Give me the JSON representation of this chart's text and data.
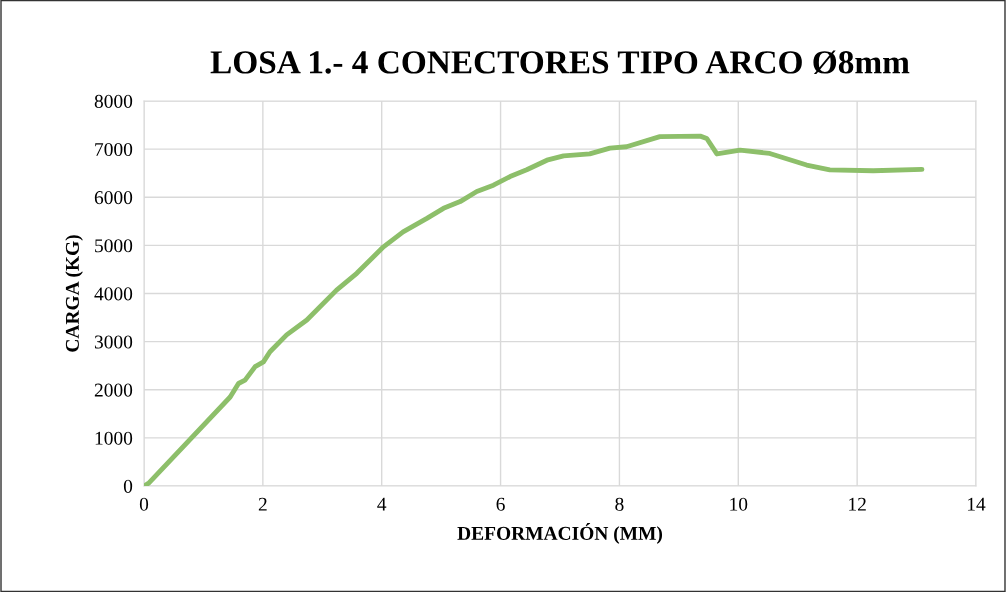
{
  "chart_data": {
    "type": "line",
    "title": "LOSA 1.- 4 CONECTORES TIPO ARCO Ø8mm",
    "xlabel": "DEFORMACIÓN (MM)",
    "ylabel": "CARGA (KG)",
    "x": [
      0,
      0.08,
      1.45,
      1.59,
      1.7,
      1.87,
      2.01,
      2.12,
      2.4,
      2.74,
      3.24,
      3.58,
      4.03,
      4.36,
      4.76,
      5.04,
      5.32,
      5.6,
      5.88,
      6.16,
      6.44,
      6.78,
      7.06,
      7.5,
      7.84,
      8.12,
      8.68,
      9.36,
      9.47,
      9.64,
      10.03,
      10.53,
      11.15,
      11.54,
      12.27,
      13.09
    ],
    "series": [
      {
        "color": "#8dbf6a",
        "values": [
          0,
          60,
          1850,
          2130,
          2200,
          2480,
          2580,
          2790,
          3140,
          3450,
          4070,
          4420,
          4970,
          5280,
          5560,
          5770,
          5910,
          6120,
          6250,
          6430,
          6570,
          6770,
          6860,
          6900,
          7020,
          7050,
          7260,
          7270,
          7220,
          6900,
          6980,
          6910,
          6670,
          6570,
          6550,
          6580
        ]
      }
    ],
    "xlim": [
      0,
      14
    ],
    "xticks": [
      0,
      2,
      4,
      6,
      8,
      10,
      12,
      14
    ],
    "ylim": [
      0,
      8000
    ],
    "yticks": [
      0,
      1000,
      2000,
      3000,
      4000,
      5000,
      6000,
      7000,
      8000
    ],
    "grid": true,
    "line_style": "solid"
  }
}
